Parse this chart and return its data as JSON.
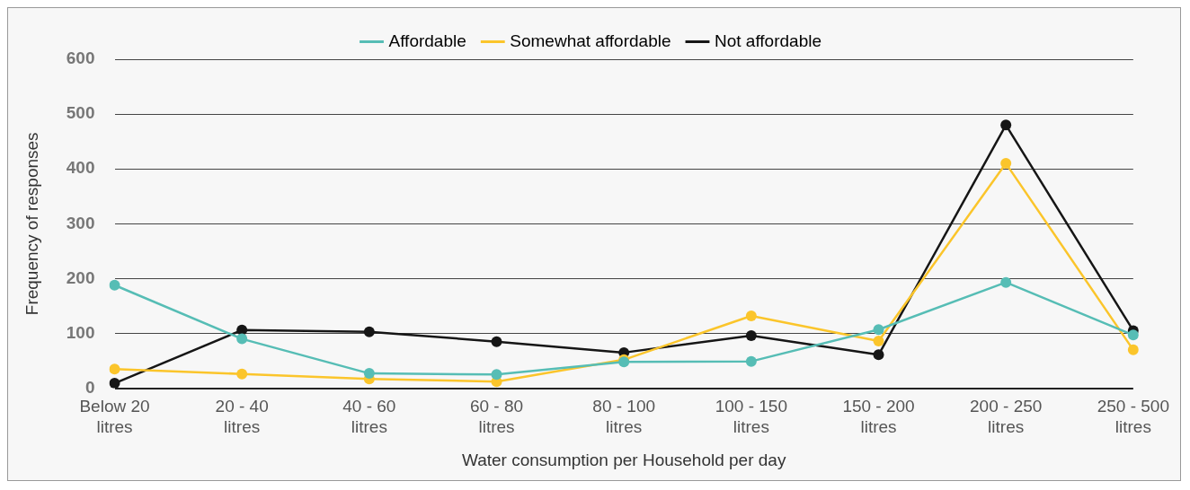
{
  "chart_data": {
    "type": "line",
    "xlabel": "Water consumption per Household per day",
    "ylabel": "Frequency of responses",
    "categories": [
      [
        "Below 20",
        "litres"
      ],
      [
        "20 - 40",
        "litres"
      ],
      [
        "40 - 60",
        "litres"
      ],
      [
        "60 - 80",
        "litres"
      ],
      [
        "80 - 100",
        "litres"
      ],
      [
        "100 - 150",
        "litres"
      ],
      [
        "150 - 200",
        "litres"
      ],
      [
        "200 - 250",
        "litres"
      ],
      [
        "250 - 500",
        "litres"
      ]
    ],
    "series": [
      {
        "name": "Affordable",
        "color": "#56bdb5",
        "values": [
          188,
          90,
          27,
          25,
          48,
          49,
          107,
          193,
          97
        ]
      },
      {
        "name": "Somewhat affordable",
        "color": "#fbc52b",
        "values": [
          35,
          26,
          17,
          12,
          52,
          132,
          86,
          410,
          70
        ]
      },
      {
        "name": "Not affordable",
        "color": "#161616",
        "values": [
          9,
          106,
          103,
          85,
          65,
          96,
          61,
          480,
          105
        ]
      }
    ],
    "ylim": [
      0,
      600
    ],
    "yticks": [
      0,
      100,
      200,
      300,
      400,
      500,
      600
    ],
    "grid": "y",
    "legend": "top",
    "marker": "circle",
    "line_style": "solid"
  }
}
